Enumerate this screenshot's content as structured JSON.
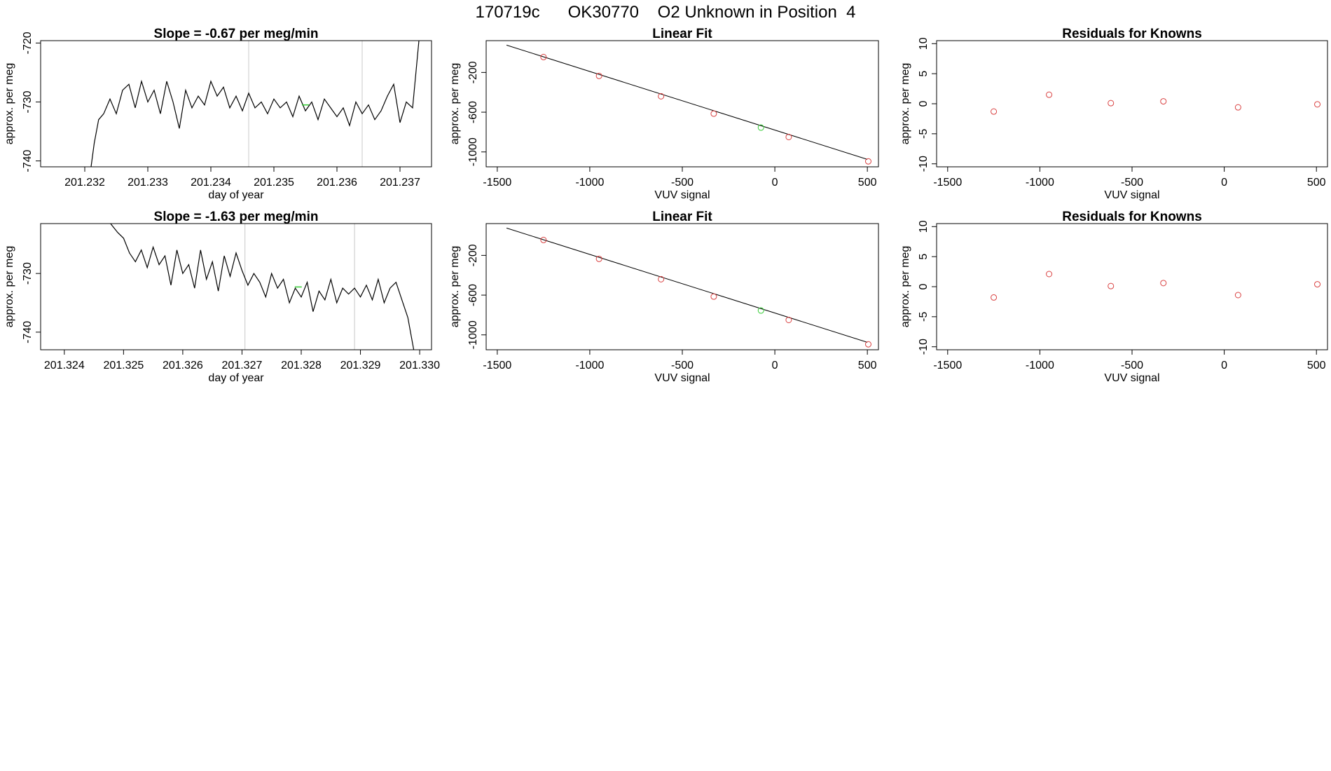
{
  "figure": {
    "title": "170719c      OK30770    O2 Unknown in Position  4",
    "background": "#ffffff"
  },
  "chart_data": [
    {
      "type": "line",
      "title": "Slope =  -0.67  per meg/min",
      "xlabel": "day of year",
      "ylabel": "approx. per meg",
      "xlim": [
        201.2313,
        201.2375
      ],
      "ylim": [
        -741,
        -719.6
      ],
      "xticks": [
        201.232,
        201.233,
        201.234,
        201.235,
        201.236,
        201.237
      ],
      "xtick_labels": [
        "201.232",
        "201.233",
        "201.234",
        "201.235",
        "201.236",
        "201.237"
      ],
      "yticks": [
        -740,
        -730,
        -720
      ],
      "ytick_labels": [
        "-740",
        "-730",
        "-720"
      ],
      "vlines": [
        201.2346,
        201.2364
      ],
      "grid": false,
      "colors": {
        "line": "#000000",
        "vline": "#c8c8c8",
        "highlight": "#33cc33"
      },
      "highlight_point": {
        "x": 201.2355,
        "y": -730.5
      },
      "series": [
        {
          "x": [
            201.2321,
            201.23215,
            201.23222,
            201.2323,
            201.2324,
            201.2325,
            201.2326,
            201.2327,
            201.2328,
            201.2329,
            201.233,
            201.2331,
            201.2332,
            201.2333,
            201.2334,
            201.2335,
            201.2336,
            201.2337,
            201.2338,
            201.2339,
            201.234,
            201.2341,
            201.2342,
            201.2343,
            201.2344,
            201.2345,
            201.2346,
            201.2347,
            201.2348,
            201.2349,
            201.235,
            201.2351,
            201.2352,
            201.2353,
            201.2354,
            201.2355,
            201.2356,
            201.2357,
            201.2358,
            201.2359,
            201.236,
            201.2361,
            201.2362,
            201.2363,
            201.2364,
            201.2365,
            201.2366,
            201.2367,
            201.2368,
            201.2369,
            201.237,
            201.2371,
            201.2372,
            201.2373
          ],
          "y": [
            -741,
            -737,
            -733,
            -732,
            -729.5,
            -732,
            -728,
            -727,
            -731,
            -726.5,
            -730,
            -728,
            -732,
            -726.5,
            -730,
            -734.5,
            -728,
            -731,
            -729,
            -730.5,
            -726.5,
            -729,
            -727.5,
            -731,
            -729,
            -731.5,
            -728.5,
            -731,
            -730,
            -732,
            -729.5,
            -731,
            -730,
            -732.5,
            -729,
            -731.5,
            -730,
            -733,
            -729.5,
            -731,
            -732.5,
            -731,
            -734,
            -730,
            -732,
            -730.5,
            -733,
            -731.5,
            -729,
            -727,
            -733.5,
            -730,
            -731,
            -719.6
          ]
        }
      ]
    },
    {
      "type": "scatter",
      "title": "Linear Fit",
      "xlabel": "VUV signal",
      "ylabel": "approx. per meg",
      "xlim": [
        -1560,
        560
      ],
      "ylim": [
        -1150,
        120
      ],
      "xticks": [
        -1500,
        -1000,
        -500,
        0,
        500
      ],
      "xtick_labels": [
        "-1500",
        "-1000",
        "-500",
        "0",
        "500"
      ],
      "yticks": [
        -1000,
        -600,
        -200
      ],
      "ytick_labels": [
        "-1000",
        "-600",
        "-200"
      ],
      "fit_line": {
        "x": [
          -1450,
          500
        ],
        "y": [
          75,
          -1075
        ]
      },
      "grid": false,
      "colors": {
        "known": "#d94040",
        "unknown": "#33cc33",
        "line": "#000000"
      },
      "series": [
        {
          "name": "",
          "x": [
            -1250,
            -950,
            -615,
            -330,
            75,
            505
          ],
          "y": [
            -45,
            -235,
            -440,
            -615,
            -850,
            -1095
          ]
        },
        {
          "name": "",
          "x": [
            -75
          ],
          "y": [
            -755
          ]
        }
      ]
    },
    {
      "type": "scatter",
      "title": "Residuals for Knowns",
      "xlabel": "VUV signal",
      "ylabel": "approx. per meg",
      "xlim": [
        -1560,
        560
      ],
      "ylim": [
        -10.5,
        10.5
      ],
      "xticks": [
        -1500,
        -1000,
        -500,
        0,
        500
      ],
      "xtick_labels": [
        "-1500",
        "-1000",
        "-500",
        "0",
        "500"
      ],
      "yticks": [
        -10,
        -5,
        0,
        5,
        10
      ],
      "ytick_labels": [
        "-10",
        "-5",
        "0",
        "5",
        "10"
      ],
      "grid": false,
      "colors": {
        "known": "#d94040"
      },
      "series": [
        {
          "name": "",
          "x": [
            -1250,
            -950,
            -615,
            -330,
            75,
            505
          ],
          "y": [
            -1.3,
            1.5,
            0.1,
            0.4,
            -0.6,
            -0.1
          ]
        }
      ]
    },
    {
      "type": "line",
      "title": "Slope =  -1.63  per meg/min",
      "xlabel": "day of year",
      "ylabel": "approx. per meg",
      "xlim": [
        201.3236,
        201.3302
      ],
      "ylim": [
        -743,
        -721.5
      ],
      "xticks": [
        201.324,
        201.325,
        201.326,
        201.327,
        201.328,
        201.329,
        201.33
      ],
      "xtick_labels": [
        "201.324",
        "201.325",
        "201.326",
        "201.327",
        "201.328",
        "201.329",
        "201.330"
      ],
      "yticks": [
        -740,
        -730
      ],
      "ytick_labels": [
        "-740",
        "-730"
      ],
      "vlines": [
        201.32705,
        201.3289
      ],
      "grid": false,
      "colors": {
        "line": "#000000",
        "vline": "#c8c8c8",
        "highlight": "#33cc33"
      },
      "highlight_point": {
        "x": 201.32795,
        "y": -732.3
      },
      "series": [
        {
          "x": [
            201.32478,
            201.3249,
            201.325,
            201.3251,
            201.3252,
            201.3253,
            201.3254,
            201.3255,
            201.3256,
            201.3257,
            201.3258,
            201.3259,
            201.326,
            201.3261,
            201.3262,
            201.3263,
            201.3264,
            201.3265,
            201.3266,
            201.3267,
            201.3268,
            201.3269,
            201.327,
            201.3271,
            201.3272,
            201.3273,
            201.3274,
            201.3275,
            201.3276,
            201.3277,
            201.3278,
            201.3279,
            201.328,
            201.3281,
            201.3282,
            201.3283,
            201.3284,
            201.3285,
            201.3286,
            201.3287,
            201.3288,
            201.3289,
            201.329,
            201.3291,
            201.3292,
            201.3293,
            201.3294,
            201.3295,
            201.3296,
            201.3297,
            201.3298,
            201.3299
          ],
          "y": [
            -721.5,
            -723,
            -724,
            -726.5,
            -728,
            -726,
            -729,
            -725.5,
            -728.5,
            -727,
            -732,
            -726,
            -730,
            -728.5,
            -732.5,
            -726,
            -731,
            -728,
            -733,
            -727,
            -730.5,
            -726.5,
            -729.5,
            -732,
            -730,
            -731.5,
            -734,
            -730,
            -732.5,
            -731,
            -735,
            -732.5,
            -734,
            -731.5,
            -736.5,
            -733,
            -734.5,
            -731,
            -735,
            -732.5,
            -733.5,
            -732.5,
            -734,
            -732,
            -734.5,
            -731,
            -735,
            -732.5,
            -731.5,
            -734.5,
            -737.5,
            -743
          ]
        }
      ]
    },
    {
      "type": "scatter",
      "title": "Linear Fit",
      "xlabel": "VUV signal",
      "ylabel": "approx. per meg",
      "xlim": [
        -1560,
        560
      ],
      "ylim": [
        -1150,
        120
      ],
      "xticks": [
        -1500,
        -1000,
        -500,
        0,
        500
      ],
      "xtick_labels": [
        "-1500",
        "-1000",
        "-500",
        "0",
        "500"
      ],
      "yticks": [
        -1000,
        -600,
        -200
      ],
      "ytick_labels": [
        "-1000",
        "-600",
        "-200"
      ],
      "fit_line": {
        "x": [
          -1450,
          500
        ],
        "y": [
          75,
          -1075
        ]
      },
      "grid": false,
      "colors": {
        "known": "#d94040",
        "unknown": "#33cc33",
        "line": "#000000"
      },
      "series": [
        {
          "name": "",
          "x": [
            -1250,
            -950,
            -615,
            -330,
            75,
            505
          ],
          "y": [
            -45,
            -235,
            -440,
            -615,
            -850,
            -1095
          ]
        },
        {
          "name": "",
          "x": [
            -75
          ],
          "y": [
            -755
          ]
        }
      ]
    },
    {
      "type": "scatter",
      "title": "Residuals for Knowns",
      "xlabel": "VUV signal",
      "ylabel": "approx. per meg",
      "xlim": [
        -1560,
        560
      ],
      "ylim": [
        -10.5,
        10.5
      ],
      "xticks": [
        -1500,
        -1000,
        -500,
        0,
        500
      ],
      "xtick_labels": [
        "-1500",
        "-1000",
        "-500",
        "0",
        "500"
      ],
      "yticks": [
        -10,
        -5,
        0,
        5,
        10
      ],
      "ytick_labels": [
        "-10",
        "-5",
        "0",
        "5",
        "10"
      ],
      "grid": false,
      "colors": {
        "known": "#d94040"
      },
      "series": [
        {
          "name": "",
          "x": [
            -1250,
            -950,
            -615,
            -330,
            75,
            505
          ],
          "y": [
            -1.8,
            2.1,
            0.1,
            0.6,
            -1.4,
            0.4
          ]
        }
      ]
    }
  ]
}
